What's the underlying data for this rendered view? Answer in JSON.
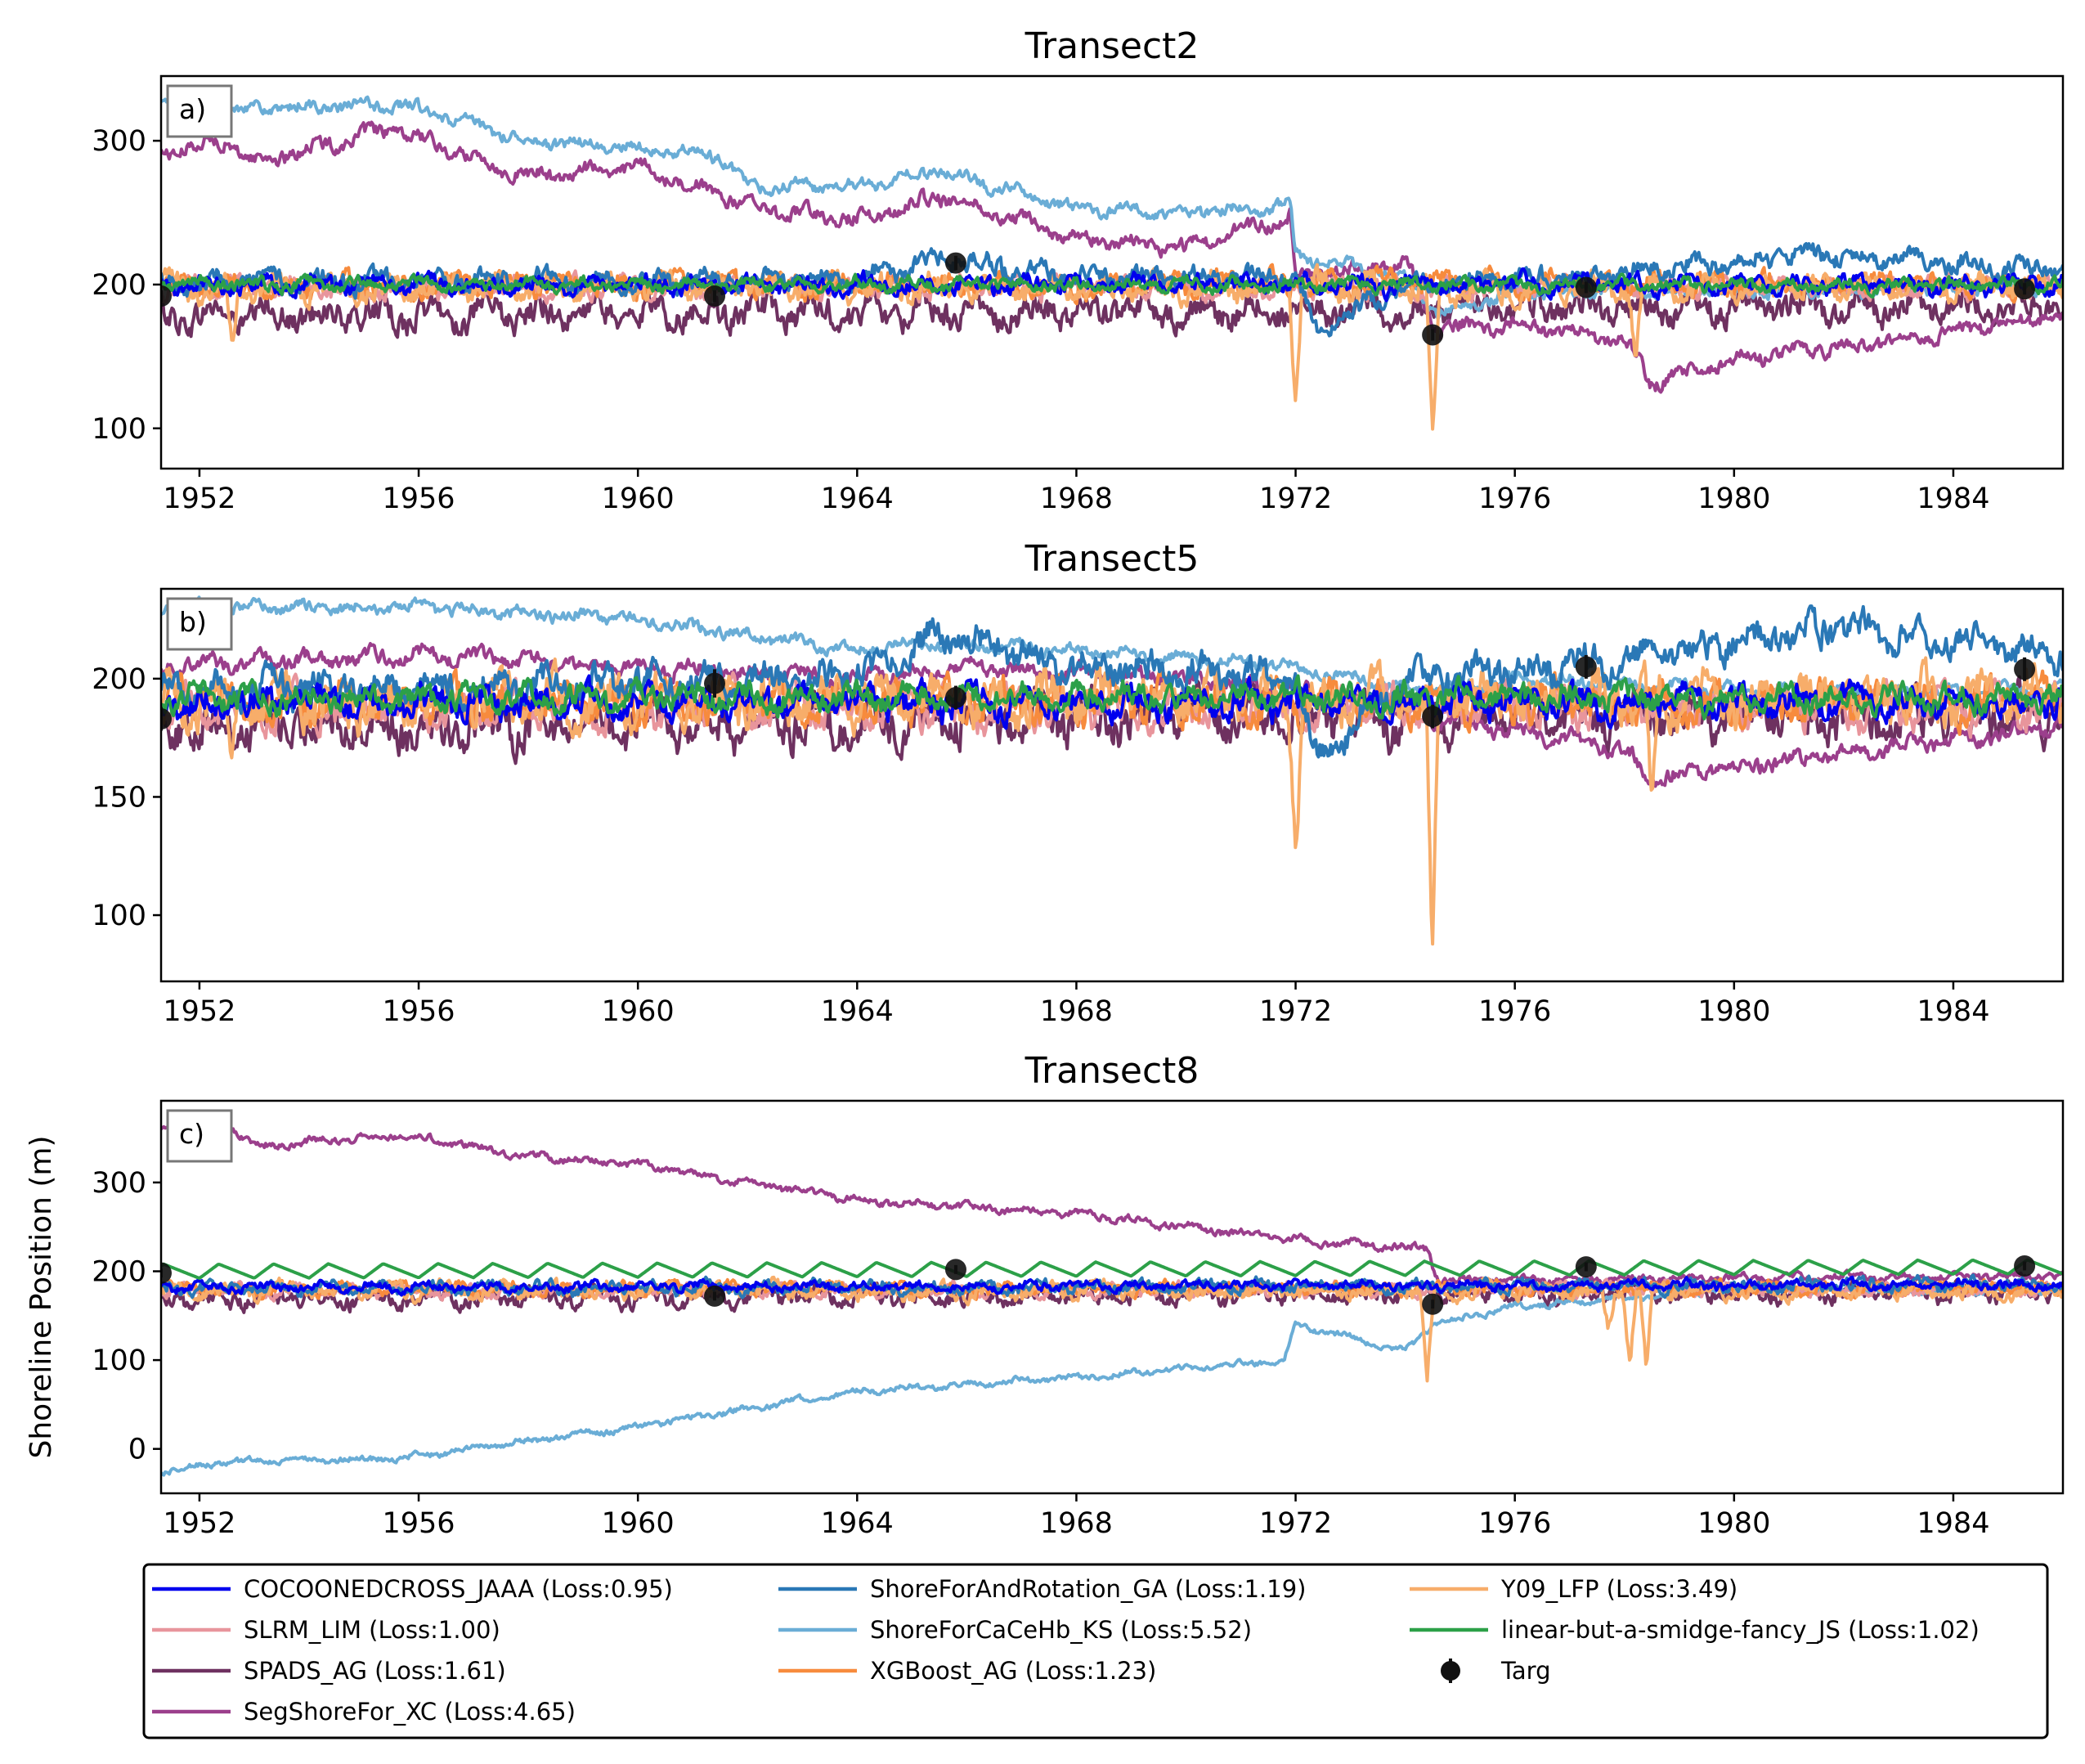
{
  "chart_data": [
    {
      "type": "line",
      "panel_label": "a)",
      "title": "Transect2",
      "ylabel": "",
      "xlabel": "",
      "xlim": [
        1951.3,
        1986.0
      ],
      "ylim": [
        72,
        345
      ],
      "yticks": [
        100,
        200,
        300
      ],
      "xticks": [
        1952,
        1956,
        1960,
        1964,
        1968,
        1972,
        1976,
        1980,
        1984
      ],
      "series_profiles": {
        "COCOONEDCROSS_JAAA": {
          "base": [
            [
              1951.3,
              200
            ],
            [
              1986.0,
              200
            ]
          ],
          "noise": 7
        },
        "SLRM_LIM": {
          "base": [
            [
              1951.3,
              198
            ],
            [
              1986.0,
              198
            ]
          ],
          "noise": 8
        },
        "SPADS_AG": {
          "base": [
            [
              1951.3,
              178
            ],
            [
              1986.0,
              185
            ]
          ],
          "noise": 12
        },
        "SegShoreFor_XC": {
          "base": [
            [
              1951.3,
              292
            ],
            [
              1952.5,
              300
            ],
            [
              1953.0,
              285
            ],
            [
              1955.5,
              308
            ],
            [
              1958.0,
              275
            ],
            [
              1960.0,
              282
            ],
            [
              1962.0,
              255
            ],
            [
              1964.0,
              245
            ],
            [
              1965.5,
              262
            ],
            [
              1968.0,
              232
            ],
            [
              1970.0,
              225
            ],
            [
              1971.9,
              248
            ],
            [
              1972.0,
              205
            ],
            [
              1974.0,
              215
            ],
            [
              1974.6,
              170
            ],
            [
              1976.0,
              172
            ],
            [
              1978.0,
              162
            ],
            [
              1978.5,
              132
            ],
            [
              1980.0,
              148
            ],
            [
              1983.0,
              162
            ],
            [
              1986.0,
              178
            ]
          ],
          "noise": 6
        },
        "ShoreForAndRotation_GA": {
          "base": [
            [
              1951.3,
              202
            ],
            [
              1964.0,
              203
            ],
            [
              1965.5,
              218
            ],
            [
              1968.0,
              205
            ],
            [
              1972.0,
              205
            ],
            [
              1972.4,
              168
            ],
            [
              1974.0,
              200
            ],
            [
              1978.0,
              208
            ],
            [
              1981.5,
              222
            ],
            [
              1986.0,
              210
            ]
          ],
          "noise": 8
        },
        "ShoreForCaCeHb_KS": {
          "base": [
            [
              1951.3,
              328
            ],
            [
              1953.0,
              322
            ],
            [
              1955.7,
              325
            ],
            [
              1958.0,
              300
            ],
            [
              1961.5,
              290
            ],
            [
              1962.0,
              268
            ],
            [
              1964.0,
              268
            ],
            [
              1965.5,
              280
            ],
            [
              1968.0,
              252
            ],
            [
              1970.0,
              250
            ],
            [
              1971.9,
              255
            ],
            [
              1972.0,
              220
            ],
            [
              1974.0,
              205
            ],
            [
              1974.6,
              180
            ],
            [
              1976.0,
              195
            ],
            [
              1980.0,
              195
            ],
            [
              1986.0,
              198
            ]
          ],
          "noise": 5
        },
        "XGBoost_AG": {
          "base": [
            [
              1951.3,
              200
            ],
            [
              1986.0,
              200
            ]
          ],
          "noise": 9
        },
        "Y09_LFP": {
          "base": [
            [
              1951.3,
              198
            ],
            [
              1986.0,
              198
            ]
          ],
          "noise": 10,
          "spikes": [
            [
              1952.6,
              160
            ],
            [
              1972.0,
              118
            ],
            [
              1974.5,
              85
            ],
            [
              1978.2,
              150
            ]
          ]
        },
        "linear-but-a-smidge-fancy_JS": {
          "base": [
            [
              1951.3,
              200
            ],
            [
              1986.0,
              200
            ]
          ],
          "noise": 5
        }
      },
      "targ": {
        "x": [
          1951.3,
          1961.4,
          1965.8,
          1974.5,
          1977.3,
          1985.3
        ],
        "y": [
          192,
          192,
          215,
          165,
          198,
          197
        ],
        "err": [
          4,
          4,
          5,
          4,
          4,
          4
        ]
      }
    },
    {
      "type": "line",
      "panel_label": "b)",
      "title": "Transect5",
      "ylabel": "",
      "xlabel": "",
      "xlim": [
        1951.3,
        1986.0
      ],
      "ylim": [
        72,
        238
      ],
      "yticks": [
        100,
        150,
        200
      ],
      "xticks": [
        1952,
        1956,
        1960,
        1964,
        1968,
        1972,
        1976,
        1980,
        1984
      ],
      "series_profiles": {
        "COCOONEDCROSS_JAAA": {
          "base": [
            [
              1951.3,
              190
            ],
            [
              1986.0,
              190
            ]
          ],
          "noise": 7
        },
        "SLRM_LIM": {
          "base": [
            [
              1951.3,
              188
            ],
            [
              1986.0,
              188
            ]
          ],
          "noise": 9
        },
        "SPADS_AG": {
          "base": [
            [
              1951.3,
              180
            ],
            [
              1986.0,
              185
            ]
          ],
          "noise": 11
        },
        "SegShoreFor_XC": {
          "base": [
            [
              1951.3,
              206
            ],
            [
              1956.0,
              210
            ],
            [
              1960.0,
              205
            ],
            [
              1964.0,
              200
            ],
            [
              1966.0,
              205
            ],
            [
              1970.0,
              200
            ],
            [
              1972.0,
              195
            ],
            [
              1974.4,
              185
            ],
            [
              1976.0,
              178
            ],
            [
              1978.0,
              170
            ],
            [
              1978.4,
              158
            ],
            [
              1982.0,
              168
            ],
            [
              1986.0,
              180
            ]
          ],
          "noise": 4
        },
        "ShoreForAndRotation_GA": {
          "base": [
            [
              1951.3,
              195
            ],
            [
              1964.0,
              200
            ],
            [
              1965.5,
              218
            ],
            [
              1968.0,
              205
            ],
            [
              1972.0,
              200
            ],
            [
              1972.4,
              165
            ],
            [
              1974.0,
              200
            ],
            [
              1978.0,
              208
            ],
            [
              1981.8,
              222
            ],
            [
              1986.0,
              210
            ]
          ],
          "noise": 8
        },
        "ShoreForCaCeHb_KS": {
          "base": [
            [
              1951.3,
              230
            ],
            [
              1956.0,
              230
            ],
            [
              1960.0,
              225
            ],
            [
              1964.0,
              212
            ],
            [
              1965.0,
              215
            ],
            [
              1968.0,
              212
            ],
            [
              1972.0,
              205
            ],
            [
              1974.4,
              195
            ],
            [
              1976.0,
              200
            ],
            [
              1980.0,
              195
            ],
            [
              1986.0,
              195
            ]
          ],
          "noise": 3
        },
        "XGBoost_AG": {
          "base": [
            [
              1951.3,
              190
            ],
            [
              1986.0,
              190
            ]
          ],
          "noise": 9
        },
        "Y09_LFP": {
          "base": [
            [
              1951.3,
              190
            ],
            [
              1986.0,
              192
            ]
          ],
          "noise": 11,
          "spikes": [
            [
              1952.6,
              160
            ],
            [
              1972.0,
              125
            ],
            [
              1974.5,
              80
            ],
            [
              1978.5,
              135
            ]
          ]
        },
        "linear-but-a-smidge-fancy_JS": {
          "base": [
            [
              1951.3,
              192
            ],
            [
              1986.0,
              192
            ]
          ],
          "noise": 6
        }
      },
      "targ": {
        "x": [
          1951.3,
          1961.4,
          1965.8,
          1974.5,
          1977.3,
          1985.3
        ],
        "y": [
          183,
          198,
          192,
          184,
          205,
          204
        ],
        "err": [
          5,
          6,
          5,
          5,
          5,
          5
        ]
      }
    },
    {
      "type": "line",
      "panel_label": "c)",
      "title": "Transect8",
      "ylabel": "Shoreline Position (m)",
      "xlabel": "",
      "xlim": [
        1951.3,
        1986.0
      ],
      "ylim": [
        -50,
        392
      ],
      "yticks": [
        0,
        100,
        200,
        300
      ],
      "xticks": [
        1952,
        1956,
        1960,
        1964,
        1968,
        1972,
        1976,
        1980,
        1984
      ],
      "series_profiles": {
        "COCOONEDCROSS_JAAA": {
          "base": [
            [
              1951.3,
              182
            ],
            [
              1986.0,
              185
            ]
          ],
          "noise": 6
        },
        "SLRM_LIM": {
          "base": [
            [
              1951.3,
              178
            ],
            [
              1986.0,
              180
            ]
          ],
          "noise": 8
        },
        "SPADS_AG": {
          "base": [
            [
              1951.3,
              168
            ],
            [
              1986.0,
              178
            ]
          ],
          "noise": 12
        },
        "SegShoreFor_XC": {
          "base": [
            [
              1951.3,
              360
            ],
            [
              1952.5,
              365
            ],
            [
              1953.0,
              340
            ],
            [
              1955.7,
              355
            ],
            [
              1958.0,
              330
            ],
            [
              1960.0,
              320
            ],
            [
              1964.0,
              280
            ],
            [
              1968.0,
              265
            ],
            [
              1972.0,
              235
            ],
            [
              1974.4,
              225
            ],
            [
              1974.6,
              190
            ],
            [
              1986.0,
              195
            ]
          ],
          "noise": 5
        },
        "ShoreForAndRotation_GA": {
          "base": [
            [
              1951.3,
              180
            ],
            [
              1986.0,
              185
            ]
          ],
          "noise": 8
        },
        "ShoreForCaCeHb_KS": {
          "base": [
            [
              1951.3,
              -25
            ],
            [
              1952.5,
              -15
            ],
            [
              1955.7,
              -10
            ],
            [
              1960.0,
              25
            ],
            [
              1964.0,
              65
            ],
            [
              1968.0,
              80
            ],
            [
              1971.8,
              100
            ],
            [
              1972.0,
              140
            ],
            [
              1974.0,
              110
            ],
            [
              1974.5,
              140
            ],
            [
              1976.0,
              160
            ],
            [
              1980.0,
              180
            ],
            [
              1986.0,
              178
            ]
          ],
          "noise": 4
        },
        "XGBoost_AG": {
          "base": [
            [
              1951.3,
              180
            ],
            [
              1986.0,
              180
            ]
          ],
          "noise": 8
        },
        "Y09_LFP": {
          "base": [
            [
              1951.3,
              178
            ],
            [
              1986.0,
              178
            ]
          ],
          "noise": 10,
          "spikes": [
            [
              1974.4,
              75
            ],
            [
              1977.7,
              135
            ],
            [
              1978.1,
              95
            ],
            [
              1978.4,
              90
            ]
          ]
        },
        "linear-but-a-smidge-fancy_JS": {
          "base": [
            [
              1951.3,
              200
            ],
            [
              1986.0,
              205
            ]
          ],
          "noise": 0,
          "seasonal": 16
        }
      },
      "targ": {
        "x": [
          1951.3,
          1961.4,
          1965.8,
          1974.5,
          1977.3,
          1985.3
        ],
        "y": [
          198,
          172,
          202,
          163,
          205,
          206
        ],
        "err": [
          5,
          5,
          5,
          5,
          5,
          5
        ]
      }
    }
  ],
  "legend": {
    "placement": "bottom",
    "entries": [
      {
        "name": "COCOONEDCROSS_JAAA",
        "label": "COCOONEDCROSS_JAAA (Loss:0.95)",
        "color": "#0000ee",
        "kind": "line"
      },
      {
        "name": "SLRM_LIM",
        "label": "SLRM_LIM (Loss:1.00)",
        "color": "#e8959c",
        "kind": "line"
      },
      {
        "name": "SPADS_AG",
        "label": "SPADS_AG (Loss:1.61)",
        "color": "#6e3160",
        "kind": "line"
      },
      {
        "name": "SegShoreFor_XC",
        "label": "SegShoreFor_XC (Loss:4.65)",
        "color": "#9b3f8c",
        "kind": "line"
      },
      {
        "name": "ShoreForAndRotation_GA",
        "label": "ShoreForAndRotation_GA (Loss:1.19)",
        "color": "#2a78b6",
        "kind": "line"
      },
      {
        "name": "ShoreForCaCeHb_KS",
        "label": "ShoreForCaCeHb_KS (Loss:5.52)",
        "color": "#6aadd6",
        "kind": "line"
      },
      {
        "name": "XGBoost_AG",
        "label": "XGBoost_AG (Loss:1.23)",
        "color": "#f78b3d",
        "kind": "line"
      },
      {
        "name": "Y09_LFP",
        "label": "Y09_LFP (Loss:3.49)",
        "color": "#f7ad6a",
        "kind": "line"
      },
      {
        "name": "linear-but-a-smidge-fancy_JS",
        "label": "linear-but-a-smidge-fancy_JS (Loss:1.02)",
        "color": "#2ca048",
        "kind": "line"
      },
      {
        "name": "Targ",
        "label": "Targ",
        "color": "#111111",
        "kind": "marker"
      }
    ]
  },
  "draw_order": [
    "SPADS_AG",
    "SegShoreFor_XC",
    "ShoreForCaCeHb_KS",
    "SLRM_LIM",
    "XGBoost_AG",
    "Y09_LFP",
    "ShoreForAndRotation_GA",
    "COCOONEDCROSS_JAAA",
    "linear-but-a-smidge-fancy_JS"
  ]
}
